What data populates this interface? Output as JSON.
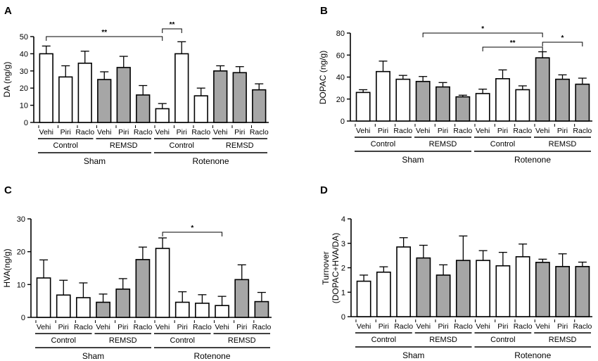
{
  "colors": {
    "open": "#ffffff",
    "filled": "#a6a6a6",
    "stroke": "#000000"
  },
  "chart_data": [
    {
      "id": "A",
      "type": "bar",
      "panel_label": "A",
      "ylabel": "DA (ng/g)",
      "ylim": [
        0,
        50
      ],
      "yticks": [
        0,
        10,
        20,
        30,
        40,
        50
      ],
      "categories": [
        "Vehi",
        "Piri",
        "Raclo",
        "Vehi",
        "Piri",
        "Raclo",
        "Vehi",
        "Piri",
        "Raclo",
        "Vehi",
        "Piri",
        "Raclo"
      ],
      "values": [
        40,
        26.5,
        34.5,
        25,
        32,
        16,
        8,
        40,
        15.5,
        30,
        29,
        19
      ],
      "errors": [
        4.5,
        6.5,
        7,
        4.5,
        6.5,
        5.5,
        3,
        7,
        4.5,
        3,
        3.5,
        3.5
      ],
      "fill": [
        "open",
        "open",
        "open",
        "filled",
        "filled",
        "filled",
        "open",
        "open",
        "open",
        "filled",
        "filled",
        "filled"
      ],
      "groups": [
        "Control",
        "REMSD",
        "Control",
        "REMSD"
      ],
      "supergroups": [
        "Sham",
        "Rotenone"
      ],
      "significance": [
        {
          "from": 0,
          "to": 6,
          "label": "**"
        },
        {
          "from": 6,
          "to": 7,
          "label": "**"
        }
      ]
    },
    {
      "id": "B",
      "type": "bar",
      "panel_label": "B",
      "ylabel": "DOPAC (ng/g)",
      "ylim": [
        0,
        80
      ],
      "yticks": [
        0,
        20,
        40,
        60,
        80
      ],
      "categories": [
        "Vehi",
        "Piri",
        "Raclo",
        "Vehi",
        "Piri",
        "Raclo",
        "Vehi",
        "Piri",
        "Raclo",
        "Vehi",
        "Piri",
        "Raclo"
      ],
      "values": [
        26,
        45,
        38,
        36,
        31,
        22,
        25,
        38.5,
        28.5,
        57.5,
        38,
        33.5
      ],
      "errors": [
        2.5,
        9.5,
        3.5,
        4.5,
        4,
        1.5,
        4,
        8,
        3.5,
        5.5,
        4,
        5.5
      ],
      "fill": [
        "open",
        "open",
        "open",
        "filled",
        "filled",
        "filled",
        "open",
        "open",
        "open",
        "filled",
        "filled",
        "filled"
      ],
      "groups": [
        "Control",
        "REMSD",
        "Control",
        "REMSD"
      ],
      "supergroups": [
        "Sham",
        "Rotenone"
      ],
      "significance": [
        {
          "from": 3,
          "to": 9,
          "label": "*"
        },
        {
          "from": 6,
          "to": 9,
          "label": "**"
        },
        {
          "from": 9,
          "to": 11,
          "label": "*"
        }
      ]
    },
    {
      "id": "C",
      "type": "bar",
      "panel_label": "C",
      "ylabel": "HVA(ng/g)",
      "ylim": [
        0,
        30
      ],
      "yticks": [
        0,
        10,
        20,
        30
      ],
      "categories": [
        "Vehi",
        "Piri",
        "Raclo",
        "Vehi",
        "Piri",
        "Raclo",
        "Vehi",
        "Piri",
        "Raclo",
        "Vehi",
        "Piri",
        "Raclo"
      ],
      "values": [
        12,
        6.8,
        6,
        4.6,
        8.6,
        17.6,
        21,
        4.6,
        4.3,
        3.6,
        11.5,
        4.8
      ],
      "errors": [
        5.5,
        4.5,
        4.5,
        2.5,
        3.2,
        3.8,
        3.2,
        3.2,
        2.6,
        2.8,
        4.5,
        2.8
      ],
      "fill": [
        "open",
        "open",
        "open",
        "filled",
        "filled",
        "filled",
        "open",
        "open",
        "open",
        "open",
        "filled",
        "filled"
      ],
      "groups": [
        "Control",
        "REMSD",
        "Control",
        "REMSD"
      ],
      "supergroups": [
        "Sham",
        "Rotenone"
      ],
      "significance": [
        {
          "from": 6,
          "to": 9,
          "label": "*"
        }
      ]
    },
    {
      "id": "D",
      "type": "bar",
      "panel_label": "D",
      "ylabel_line1": "Turnover",
      "ylabel_line2": "(DOPAC+HVA/DA)",
      "ylim": [
        0,
        4
      ],
      "yticks": [
        0,
        1,
        2,
        3,
        4
      ],
      "categories": [
        "Vehi",
        "Piri",
        "Raclo",
        "Vehi",
        "Piri",
        "Raclo",
        "Vehi",
        "Piri",
        "Raclo",
        "Vehi",
        "Piri",
        "Raclo"
      ],
      "values": [
        1.45,
        1.82,
        2.85,
        2.4,
        1.7,
        2.3,
        2.3,
        2.08,
        2.45,
        2.22,
        2.05,
        2.05
      ],
      "errors": [
        0.25,
        0.22,
        0.38,
        0.52,
        0.42,
        1.0,
        0.4,
        0.55,
        0.52,
        0.13,
        0.52,
        0.18
      ],
      "fill": [
        "open",
        "open",
        "open",
        "filled",
        "filled",
        "filled",
        "open",
        "open",
        "open",
        "filled",
        "filled",
        "filled"
      ],
      "groups": [
        "Control",
        "REMSD",
        "Control",
        "REMSD"
      ],
      "supergroups": [
        "Sham",
        "Rotenone"
      ],
      "significance": []
    }
  ]
}
